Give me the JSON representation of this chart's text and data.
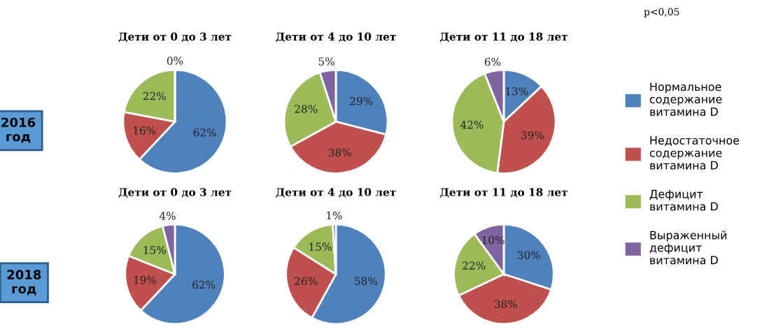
{
  "chart_data": [
    {
      "type": "pie",
      "title": "Дети от 0 до 3 лет",
      "categories": [
        null,
        null,
        null,
        null
      ],
      "values": [
        62,
        16,
        22,
        0
      ],
      "value_labels": [
        "62%",
        "16%",
        "22%",
        "0%"
      ],
      "colors": [
        "#4f81bd",
        "#c0504d",
        "#9bbb59",
        "#8064a2"
      ],
      "annotations": [
        "2016\nгод"
      ]
    },
    {
      "type": "pie",
      "title": "Дети от 4 до 10 лет",
      "categories": [
        null,
        null,
        null,
        null
      ],
      "values": [
        29,
        38,
        28,
        5
      ],
      "value_labels": [
        "29%",
        "38%",
        "28%",
        "5%"
      ],
      "colors": [
        "#4f81bd",
        "#c0504d",
        "#9bbb59",
        "#8064a2"
      ]
    },
    {
      "type": "pie",
      "title": "Дети от 11 до 18 лет",
      "categories": [
        "Нормальное\nсодержание\nвитамина D",
        "Недостаточное\nсодержание\nвитамина D",
        "Дефицит\nвитамина D",
        "Выраженный\nдефицит\nвитамина D"
      ],
      "values": [
        13,
        39,
        42,
        6
      ],
      "value_labels": [
        "13%",
        "39%",
        "42%",
        "6%"
      ],
      "colors": [
        "#4f81bd",
        "#c0504d",
        "#9bbb59",
        "#8064a2"
      ],
      "legend": "right",
      "annotations": [
        "p<0,05"
      ]
    },
    {
      "type": "pie",
      "title": "Дети от 0 до 3 лет",
      "categories": [
        null,
        null,
        null,
        null
      ],
      "values": [
        62,
        19,
        15,
        4
      ],
      "value_labels": [
        "62%",
        "19%",
        "15%",
        "4%"
      ],
      "colors": [
        "#4f81bd",
        "#c0504d",
        "#9bbb59",
        "#8064a2"
      ],
      "annotations": [
        "2018\nгод"
      ]
    },
    {
      "type": "pie",
      "title": "Дети от 4 до 10 лет",
      "categories": [
        null,
        null,
        null,
        null
      ],
      "values": [
        58,
        26,
        15,
        1
      ],
      "value_labels": [
        "58%",
        "26%",
        "15%",
        "1%"
      ],
      "colors": [
        "#4f81bd",
        "#c0504d",
        "#9bbb59",
        "#8064a2"
      ]
    },
    {
      "type": "pie",
      "title": "Дети от 11 до 18 лет",
      "categories": [
        null,
        null,
        null,
        null
      ],
      "values": [
        30,
        38,
        22,
        10
      ],
      "value_labels": [
        "30%",
        "38%",
        "22%",
        "10%"
      ],
      "colors": [
        "#4f81bd",
        "#c0504d",
        "#9bbb59",
        "#8064a2"
      ]
    }
  ]
}
